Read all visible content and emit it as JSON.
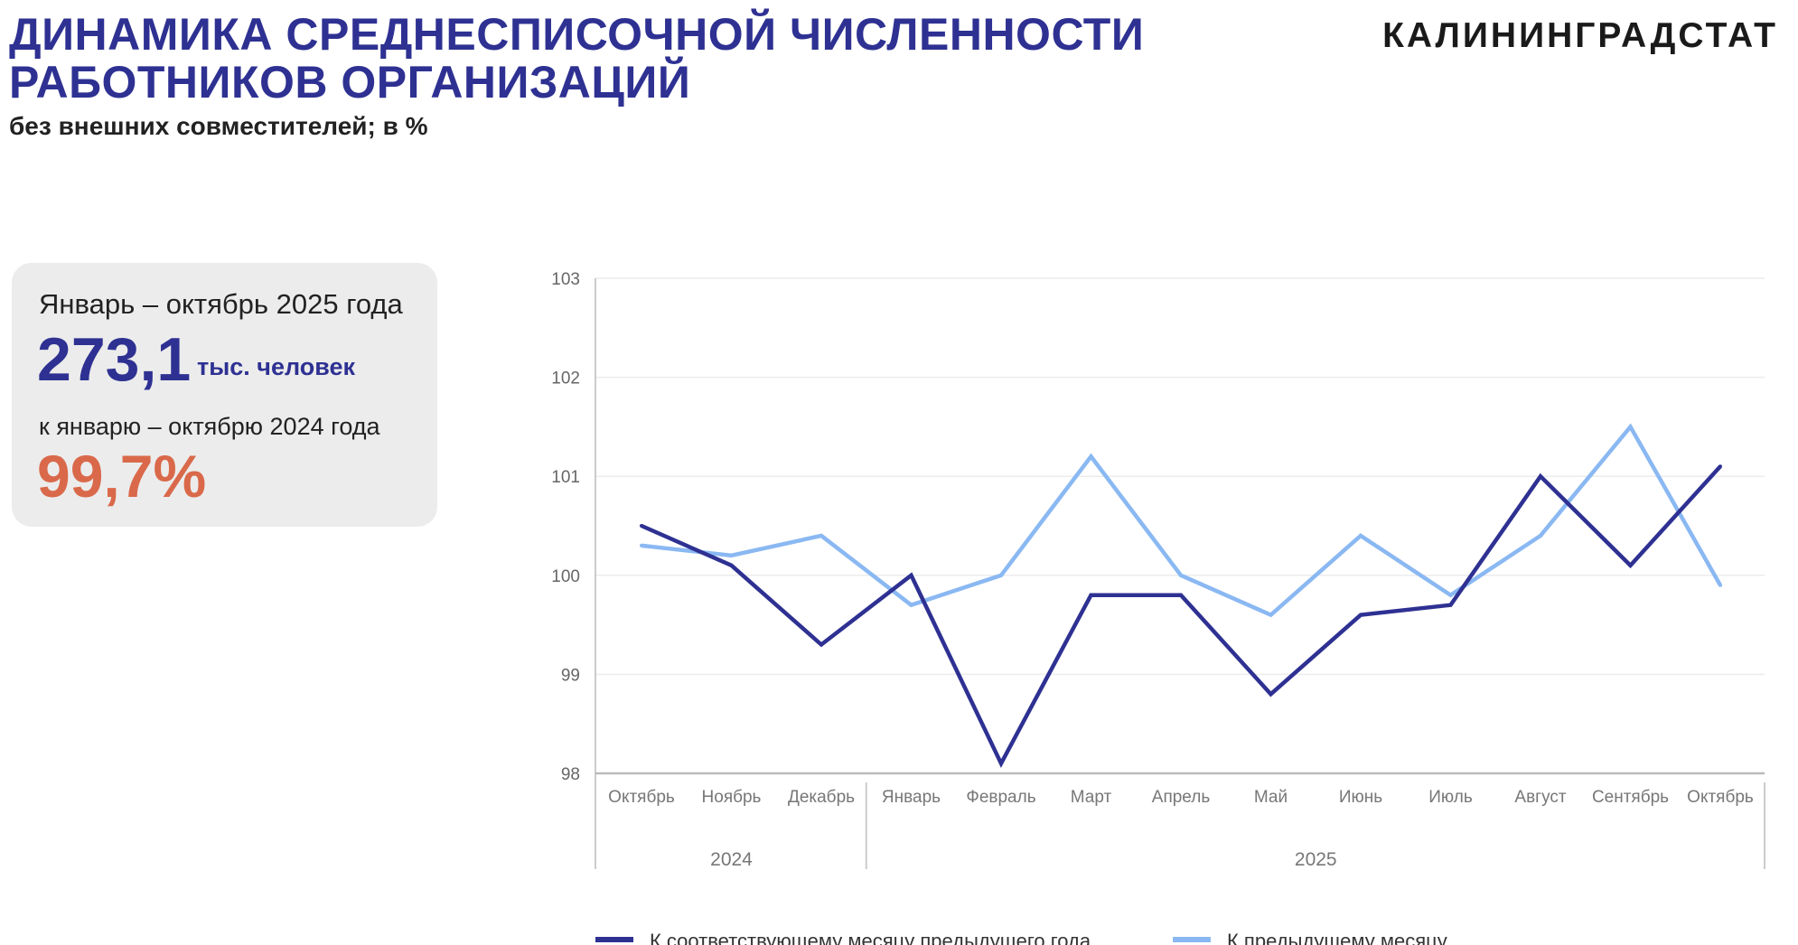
{
  "header": {
    "title_line1": "ДИНАМИКА СРЕДНЕСПИСОЧНОЙ ЧИСЛЕННОСТИ",
    "title_line2": "РАБОТНИКОВ ОРГАНИЗАЦИЙ",
    "subtitle": "без внешних совместителей; в %",
    "logo": "КАЛИНИНГРАДСТАТ"
  },
  "card": {
    "period": "Январь – октябрь 2025 года",
    "value": "273,1",
    "unit": "тыс. человек",
    "compare_label": "к январю – октябрю 2024 года",
    "compare_value": "99,7%"
  },
  "colors": {
    "dark": "#2e3192",
    "light": "#8ab8f2",
    "accent": "#d9694a"
  },
  "chart_data": {
    "type": "line",
    "categories": [
      "Октябрь",
      "Ноябрь",
      "Декабрь",
      "Январь",
      "Февраль",
      "Март",
      "Апрель",
      "Май",
      "Июнь",
      "Июль",
      "Август",
      "Сентябрь",
      "Октябрь"
    ],
    "groups": [
      {
        "label": "2024",
        "count": 3
      },
      {
        "label": "2025",
        "count": 10
      }
    ],
    "ylim": [
      98,
      103
    ],
    "yticks": [
      "98",
      "99",
      "100",
      "101",
      "102",
      "103"
    ],
    "grid": true,
    "legend_position": "bottom",
    "series": [
      {
        "name": "К соответствующему месяцу предыдущего года",
        "color": "#2e3192",
        "values": [
          100.5,
          100.1,
          99.3,
          100.0,
          98.1,
          99.8,
          99.8,
          98.8,
          99.6,
          99.7,
          101.0,
          100.1,
          101.1
        ]
      },
      {
        "name": "К предыдущему месяцу",
        "color": "#8ab8f2",
        "values": [
          100.3,
          100.2,
          100.4,
          99.7,
          100.0,
          101.2,
          100.0,
          99.6,
          100.4,
          99.8,
          100.4,
          101.5,
          99.9
        ]
      }
    ]
  }
}
